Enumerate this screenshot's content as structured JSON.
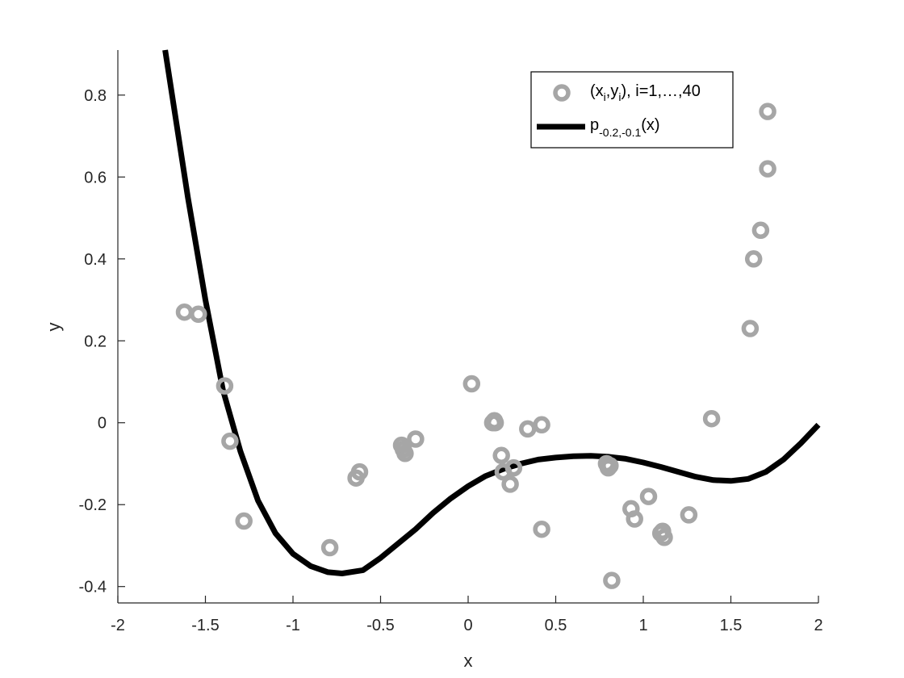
{
  "chart_data": {
    "type": "scatter",
    "title": "",
    "xlabel": "x",
    "ylabel": "y",
    "xlim": [
      -2,
      2
    ],
    "ylim": [
      -0.44,
      0.91
    ],
    "xticks": [
      "-2",
      "-1.5",
      "-1",
      "-0.5",
      "0",
      "0.5",
      "1",
      "1.5",
      "2"
    ],
    "yticks": [
      "-0.4",
      "-0.2",
      "0",
      "0.2",
      "0.4",
      "0.6",
      "0.8"
    ],
    "grid": false,
    "legend_position": "top-right",
    "colors": {
      "points": "#a6a6a6",
      "curve": "#000000",
      "axes": "#262626"
    },
    "legend": {
      "points": {
        "text_a": "(x",
        "sub_a": "i",
        "text_b": ",y",
        "sub_b": "i",
        "text_c": "), i=1,…,40"
      },
      "curve": {
        "text_a": "p",
        "sub_a": "-0.2,-0.1",
        "text_b": "(x)"
      }
    },
    "series": [
      {
        "type": "scatter",
        "points": [
          [
            -1.62,
            0.27
          ],
          [
            -1.54,
            0.265
          ],
          [
            -1.39,
            0.09
          ],
          [
            -1.36,
            -0.045
          ],
          [
            -1.28,
            -0.24
          ],
          [
            -0.79,
            -0.305
          ],
          [
            -0.64,
            -0.135
          ],
          [
            -0.62,
            -0.12
          ],
          [
            -0.38,
            -0.055
          ],
          [
            -0.36,
            -0.075
          ],
          [
            -0.3,
            -0.04
          ],
          [
            0.02,
            0.095
          ],
          [
            0.15,
            0.005
          ],
          [
            0.155,
            0.0
          ],
          [
            0.19,
            -0.08
          ],
          [
            0.2,
            -0.12
          ],
          [
            0.24,
            -0.15
          ],
          [
            0.26,
            -0.11
          ],
          [
            0.34,
            -0.015
          ],
          [
            0.42,
            -0.005
          ],
          [
            0.42,
            -0.26
          ],
          [
            0.79,
            -0.1
          ],
          [
            0.81,
            -0.105
          ],
          [
            0.82,
            -0.385
          ],
          [
            0.93,
            -0.21
          ],
          [
            0.95,
            -0.235
          ],
          [
            1.03,
            -0.18
          ],
          [
            1.11,
            -0.265
          ],
          [
            1.12,
            -0.28
          ],
          [
            1.26,
            -0.225
          ],
          [
            1.39,
            0.01
          ],
          [
            1.61,
            0.23
          ],
          [
            1.63,
            0.4
          ],
          [
            1.67,
            0.47
          ],
          [
            1.71,
            0.76
          ],
          [
            1.71,
            0.62
          ],
          [
            0.8,
            -0.11
          ],
          [
            0.14,
            0.0
          ],
          [
            -0.37,
            -0.065
          ],
          [
            1.1,
            -0.27
          ]
        ]
      },
      {
        "type": "line",
        "x_range": [
          -1.73,
          2.0
        ],
        "points": [
          [
            -1.73,
            0.91
          ],
          [
            -1.6,
            0.55
          ],
          [
            -1.5,
            0.3
          ],
          [
            -1.4,
            0.08
          ],
          [
            -1.3,
            -0.07
          ],
          [
            -1.2,
            -0.19
          ],
          [
            -1.1,
            -0.27
          ],
          [
            -1.0,
            -0.32
          ],
          [
            -0.9,
            -0.35
          ],
          [
            -0.8,
            -0.365
          ],
          [
            -0.72,
            -0.368
          ],
          [
            -0.6,
            -0.36
          ],
          [
            -0.5,
            -0.33
          ],
          [
            -0.4,
            -0.295
          ],
          [
            -0.3,
            -0.26
          ],
          [
            -0.2,
            -0.22
          ],
          [
            -0.1,
            -0.185
          ],
          [
            0.0,
            -0.155
          ],
          [
            0.1,
            -0.13
          ],
          [
            0.2,
            -0.113
          ],
          [
            0.3,
            -0.1
          ],
          [
            0.4,
            -0.09
          ],
          [
            0.5,
            -0.085
          ],
          [
            0.6,
            -0.082
          ],
          [
            0.7,
            -0.081
          ],
          [
            0.8,
            -0.083
          ],
          [
            0.9,
            -0.088
          ],
          [
            1.0,
            -0.097
          ],
          [
            1.1,
            -0.108
          ],
          [
            1.2,
            -0.12
          ],
          [
            1.3,
            -0.132
          ],
          [
            1.4,
            -0.14
          ],
          [
            1.5,
            -0.142
          ],
          [
            1.6,
            -0.137
          ],
          [
            1.7,
            -0.12
          ],
          [
            1.8,
            -0.09
          ],
          [
            1.9,
            -0.05
          ],
          [
            2.0,
            -0.005
          ]
        ]
      }
    ]
  }
}
